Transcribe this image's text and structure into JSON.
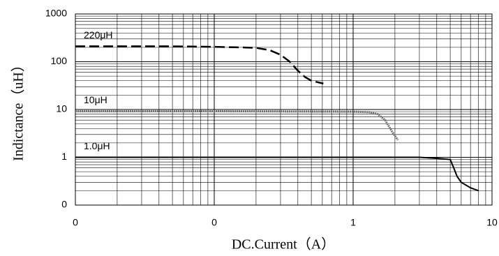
{
  "chart_data": {
    "type": "line",
    "x_label": "DC.Current（A）",
    "y_label": "Indictance（uH）",
    "xscale": "log",
    "yscale": "log",
    "grid": true,
    "minor_grid": true,
    "xlim": [
      0.01,
      10
    ],
    "xticks": [
      {
        "value": 0.01,
        "label": "0"
      },
      {
        "value": 0.1,
        "label": "0"
      },
      1,
      10
    ],
    "ylim": [
      0.1,
      1000
    ],
    "yticks": [
      {
        "value": 0.1,
        "label": "0"
      },
      1,
      10,
      100,
      1000
    ],
    "series": [
      {
        "name": "220μH",
        "color": "#000000",
        "style": "dashed",
        "x": [
          0.01,
          0.05,
          0.1,
          0.15,
          0.2,
          0.25,
          0.3,
          0.35,
          0.4,
          0.45,
          0.5,
          0.61
        ],
        "values": [
          210,
          210,
          205,
          200,
          195,
          175,
          140,
          100,
          65,
          48,
          40,
          35
        ]
      },
      {
        "name": "10μH",
        "color": "#707070",
        "style": "dotted",
        "x": [
          0.01,
          0.1,
          1,
          1.3,
          1.5,
          1.7,
          1.9,
          2.1
        ],
        "values": [
          9.2,
          9.2,
          9,
          8.8,
          8,
          6,
          3.5,
          2.3
        ]
      },
      {
        "name": "1.0μH",
        "color": "#000000",
        "style": "solid",
        "x": [
          0.01,
          1,
          3,
          4,
          5,
          5.3,
          5.6,
          6,
          7,
          8
        ],
        "values": [
          1,
          1,
          1,
          0.95,
          0.9,
          0.6,
          0.4,
          0.3,
          0.23,
          0.2
        ]
      }
    ]
  }
}
